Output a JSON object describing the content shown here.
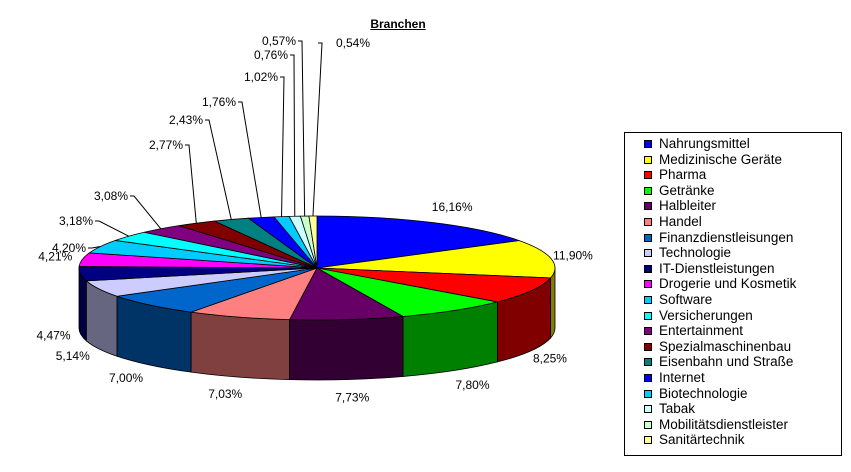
{
  "chart_data": {
    "type": "pie",
    "title": "Branchen",
    "legend_position": "right",
    "slices": [
      {
        "name": "Nahrungsmittel",
        "value": 16.16,
        "label": "16,16%",
        "color": "#0000ff"
      },
      {
        "name": "Medizinische Geräte",
        "value": 11.9,
        "label": "11,90%",
        "color": "#ffff00"
      },
      {
        "name": "Pharma",
        "value": 8.25,
        "label": "8,25%",
        "color": "#ff0000"
      },
      {
        "name": "Getränke",
        "value": 7.8,
        "label": "7,80%",
        "color": "#00ff00"
      },
      {
        "name": "Halbleiter",
        "value": 7.73,
        "label": "7,73%",
        "color": "#660066"
      },
      {
        "name": "Handel",
        "value": 7.03,
        "label": "7,03%",
        "color": "#ff8080"
      },
      {
        "name": "Finanzdienstleisungen",
        "value": 7.0,
        "label": "7,00%",
        "color": "#0066cc"
      },
      {
        "name": "Technologie",
        "value": 5.14,
        "label": "5,14%",
        "color": "#ccccff"
      },
      {
        "name": "IT-Dienstleistungen",
        "value": 4.47,
        "label": "4,47%",
        "color": "#000080"
      },
      {
        "name": "Drogerie und Kosmetik",
        "value": 4.21,
        "label": "4,21%",
        "color": "#ff00ff"
      },
      {
        "name": "Software",
        "value": 4.2,
        "label": "4,20%",
        "color": "#00ccff"
      },
      {
        "name": "Versicherungen",
        "value": 3.18,
        "label": "3,18%",
        "color": "#00ffff"
      },
      {
        "name": "Entertainment",
        "value": 3.08,
        "label": "3,08%",
        "color": "#800080"
      },
      {
        "name": "Spezialmaschinenbau",
        "value": 2.77,
        "label": "2,77%",
        "color": "#800000"
      },
      {
        "name": "Eisenbahn und Straße",
        "value": 2.43,
        "label": "2,43%",
        "color": "#008080"
      },
      {
        "name": "Internet",
        "value": 1.76,
        "label": "1,76%",
        "color": "#0000ff"
      },
      {
        "name": "Biotechnologie",
        "value": 1.02,
        "label": "1,02%",
        "color": "#00ccff"
      },
      {
        "name": "Tabak",
        "value": 0.76,
        "label": "0,76%",
        "color": "#ccffff"
      },
      {
        "name": "Mobilitätsdienstleister",
        "value": 0.57,
        "label": "0,57%",
        "color": "#ccffcc"
      },
      {
        "name": "Sanitärtechnik",
        "value": 0.54,
        "label": "0,54%",
        "color": "#ffff99"
      }
    ]
  }
}
